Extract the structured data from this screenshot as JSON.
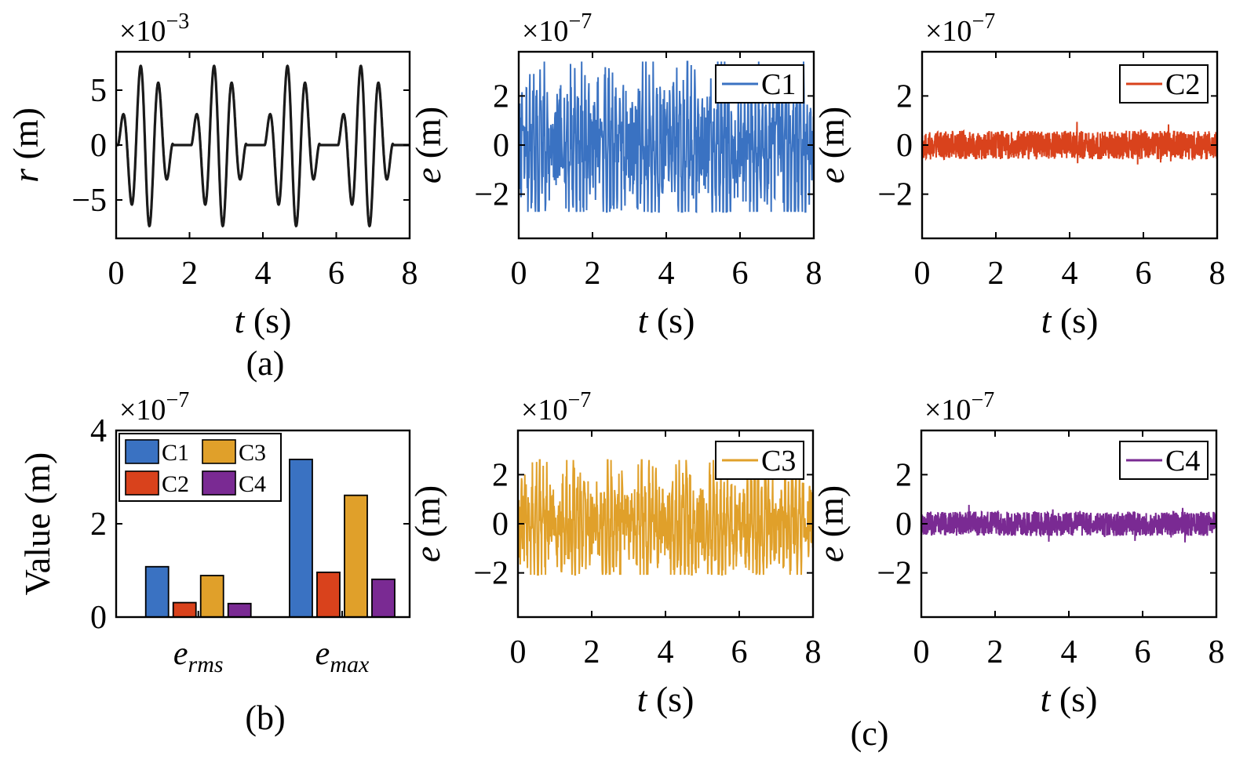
{
  "figure": {
    "subplot_labels": {
      "a": "(a)",
      "b": "(b)",
      "c": "(c)"
    }
  },
  "chart_data": [
    {
      "id": "r-plot",
      "type": "line",
      "xlabel_var": "t",
      "xlabel_unit": "(s)",
      "ylabel_var": "r",
      "ylabel_unit": "(m)",
      "multiplier_base": "×10",
      "multiplier_exp": "−3",
      "xlim": [
        0,
        8
      ],
      "ylim": [
        -8.5,
        8.5
      ],
      "xticks": [
        0,
        2,
        4,
        6,
        8
      ],
      "yticks": [
        -5,
        0,
        5
      ],
      "ytick_labels": [
        "−5",
        "0",
        "5"
      ],
      "series": [
        {
          "color": "#1a1a1a",
          "signal": "r(t) = 5.5·sin(2π·t/0.9)·sin²(π·t/2) + shifted component, period 2 s, peaks ≈ 5.5 / 7.8, troughs ≈ −7.8 / −5.5"
        }
      ]
    },
    {
      "id": "e-c1-plot",
      "type": "line",
      "xlabel_var": "t",
      "xlabel_unit": "(s)",
      "ylabel_var": "e",
      "ylabel_unit": "(m)",
      "multiplier_base": "×10",
      "multiplier_exp": "−7",
      "xlim": [
        0,
        8
      ],
      "ylim": [
        -3.8,
        3.8
      ],
      "xticks": [
        0,
        2,
        4,
        6,
        8
      ],
      "yticks": [
        -2,
        0,
        2
      ],
      "ytick_labels": [
        "−2",
        "0",
        "2"
      ],
      "series": [
        {
          "name": "C1",
          "color": "#3a72c2",
          "amplitude": 3.4
        }
      ]
    },
    {
      "id": "e-c2-plot",
      "type": "line",
      "xlabel_var": "t",
      "xlabel_unit": "(s)",
      "ylabel_var": "e",
      "ylabel_unit": "(m)",
      "multiplier_base": "×10",
      "multiplier_exp": "−7",
      "xlim": [
        0,
        8
      ],
      "ylim": [
        -3.8,
        3.8
      ],
      "xticks": [
        0,
        2,
        4,
        6,
        8
      ],
      "yticks": [
        -2,
        0,
        2
      ],
      "ytick_labels": [
        "−2",
        "0",
        "2"
      ],
      "series": [
        {
          "name": "C2",
          "color": "#d9421c",
          "amplitude": 0.95
        }
      ]
    },
    {
      "id": "bar-plot",
      "type": "bar",
      "ylabel": "Value (m)",
      "multiplier_base": "×10",
      "multiplier_exp": "−7",
      "categories": [
        {
          "base": "e",
          "sub": "rms"
        },
        {
          "base": "e",
          "sub": "max"
        }
      ],
      "ylim": [
        0,
        4
      ],
      "yticks": [
        0,
        2,
        4
      ],
      "ytick_labels": [
        "0",
        "2",
        "4"
      ],
      "series": [
        {
          "name": "C1",
          "color": "#3a72c2",
          "values": [
            1.08,
            3.38
          ]
        },
        {
          "name": "C2",
          "color": "#d9421c",
          "values": [
            0.31,
            0.96
          ]
        },
        {
          "name": "C3",
          "color": "#e0a02a",
          "values": [
            0.89,
            2.61
          ]
        },
        {
          "name": "C4",
          "color": "#7a2a93",
          "values": [
            0.29,
            0.81
          ]
        }
      ]
    },
    {
      "id": "e-c3-plot",
      "type": "line",
      "xlabel_var": "t",
      "xlabel_unit": "(s)",
      "ylabel_var": "e",
      "ylabel_unit": "(m)",
      "multiplier_base": "×10",
      "multiplier_exp": "−7",
      "xlim": [
        0,
        8
      ],
      "ylim": [
        -3.8,
        3.8
      ],
      "xticks": [
        0,
        2,
        4,
        6,
        8
      ],
      "yticks": [
        -2,
        0,
        2
      ],
      "ytick_labels": [
        "−2",
        "0",
        "2"
      ],
      "series": [
        {
          "name": "C3",
          "color": "#e0a02a",
          "amplitude": 2.6
        }
      ]
    },
    {
      "id": "e-c4-plot",
      "type": "line",
      "xlabel_var": "t",
      "xlabel_unit": "(s)",
      "ylabel_var": "e",
      "ylabel_unit": "(m)",
      "multiplier_base": "×10",
      "multiplier_exp": "−7",
      "xlim": [
        0,
        8
      ],
      "ylim": [
        -3.8,
        3.8
      ],
      "xticks": [
        0,
        2,
        4,
        6,
        8
      ],
      "yticks": [
        -2,
        0,
        2
      ],
      "ytick_labels": [
        "−2",
        "0",
        "2"
      ],
      "series": [
        {
          "name": "C4",
          "color": "#7a2a93",
          "amplitude": 0.8
        }
      ]
    }
  ]
}
